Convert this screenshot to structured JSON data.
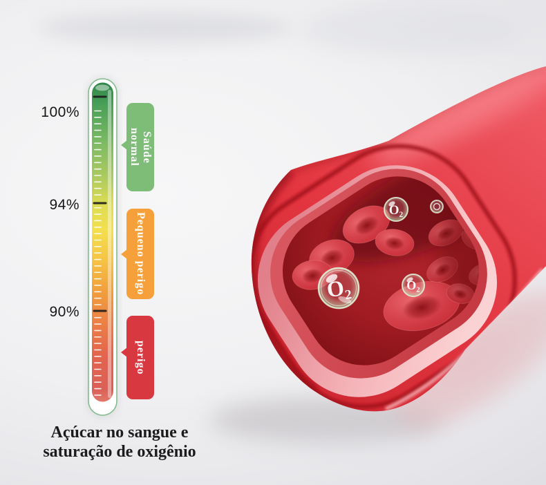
{
  "scale": {
    "tick_labels": [
      "100%",
      "94%",
      "90%"
    ],
    "zones": [
      {
        "label": "Saúde normal",
        "color": "#7dbd77"
      },
      {
        "label": "Pequeno perigo",
        "color": "#f6a03c"
      },
      {
        "label": "perigo",
        "color": "#d83840"
      }
    ]
  },
  "caption": {
    "line1": "Açúcar no sangue e",
    "line2": "saturação de oxigênio"
  },
  "vessel": {
    "bubbles": [
      {
        "label": "O₂"
      },
      {
        "label": "O₂"
      },
      {
        "label": "O₂"
      }
    ]
  },
  "colors": {
    "zone_green": "#7dbd77",
    "zone_orange": "#f6a03c",
    "zone_red": "#d83840",
    "artery_red": "#e23540",
    "artery_lining_pink": "#f5bcc0",
    "interior_dark_red": "#8c151b",
    "background": "#eeeef0"
  }
}
